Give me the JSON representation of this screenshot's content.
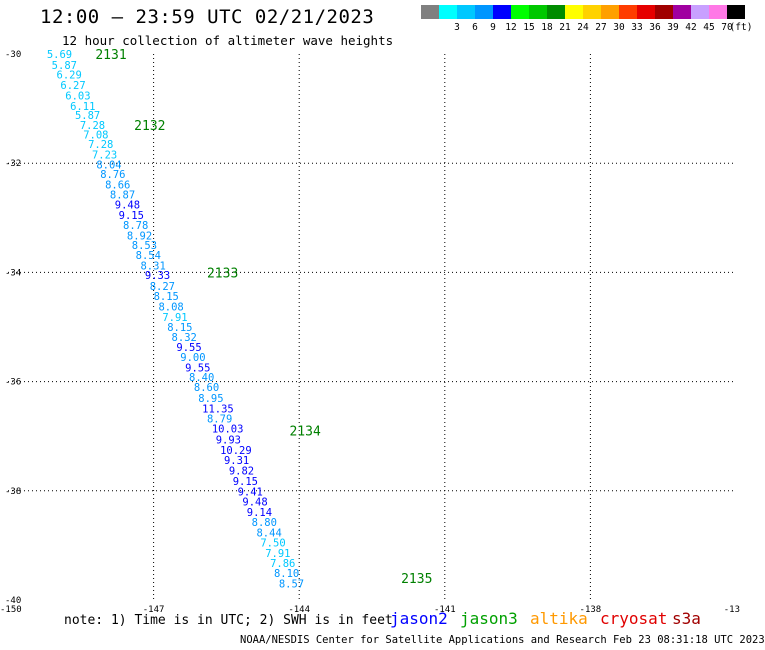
{
  "header": {
    "title": "12:00 – 23:59 UTC 02/21/2023",
    "subtitle": "12 hour collection of altimeter wave heights"
  },
  "legend": {
    "units": "(ft)",
    "bins": [
      {
        "label": "",
        "color": "#808080"
      },
      {
        "label": "3",
        "color": "#00ffff"
      },
      {
        "label": "6",
        "color": "#00c8ff"
      },
      {
        "label": "9",
        "color": "#0096ff"
      },
      {
        "label": "12",
        "color": "#0000ff"
      },
      {
        "label": "15",
        "color": "#00ff00"
      },
      {
        "label": "18",
        "color": "#00c800"
      },
      {
        "label": "21",
        "color": "#008c00"
      },
      {
        "label": "24",
        "color": "#ffff00"
      },
      {
        "label": "27",
        "color": "#ffd200"
      },
      {
        "label": "30",
        "color": "#ffa000"
      },
      {
        "label": "33",
        "color": "#ff3c00"
      },
      {
        "label": "36",
        "color": "#e60000"
      },
      {
        "label": "39",
        "color": "#a00000"
      },
      {
        "label": "42",
        "color": "#a000a0"
      },
      {
        "label": "45",
        "color": "#c8a0ff"
      },
      {
        "label": "70",
        "color": "#ff78e6"
      },
      {
        "label": "",
        "color": "#000000"
      }
    ]
  },
  "axes": {
    "lon_labels": [
      "-150",
      "-147",
      "-144",
      "-141",
      "-138",
      "-13"
    ],
    "lat_labels": [
      "-30",
      "-32",
      "-34",
      "-36",
      "-38",
      "-40"
    ]
  },
  "map_data": {
    "lat_range": [
      -40,
      -30
    ],
    "lon_range": [
      -150,
      -135
    ],
    "grid": "dotted",
    "pass_labels": [
      {
        "label": "2131",
        "lat": -30.0,
        "lon": -148.2
      },
      {
        "label": "2132",
        "lat": -31.3,
        "lon": -147.4
      },
      {
        "label": "2133",
        "lat": -34.0,
        "lon": -145.9
      },
      {
        "label": "2134",
        "lat": -36.9,
        "lon": -144.2
      },
      {
        "label": "2135",
        "lat": -39.6,
        "lon": -141.9
      }
    ],
    "points": [
      {
        "v": "5.69",
        "lat": -30.0,
        "lon": -149.2,
        "c": "#00c8ff"
      },
      {
        "v": "5.87",
        "lat": -30.2,
        "lon": -149.1,
        "c": "#00c8ff"
      },
      {
        "v": "6.29",
        "lat": -30.38,
        "lon": -149.0,
        "c": "#00c8ff"
      },
      {
        "v": "6.27",
        "lat": -30.57,
        "lon": -148.92,
        "c": "#00c8ff"
      },
      {
        "v": "6.03",
        "lat": -30.76,
        "lon": -148.82,
        "c": "#00c8ff"
      },
      {
        "v": "6.11",
        "lat": -30.95,
        "lon": -148.72,
        "c": "#00c8ff"
      },
      {
        "v": "5.87",
        "lat": -31.12,
        "lon": -148.62,
        "c": "#00c8ff"
      },
      {
        "v": "7.28",
        "lat": -31.3,
        "lon": -148.52,
        "c": "#00c8ff"
      },
      {
        "v": "7.08",
        "lat": -31.47,
        "lon": -148.45,
        "c": "#00c8ff"
      },
      {
        "v": "7.28",
        "lat": -31.65,
        "lon": -148.35,
        "c": "#00c8ff"
      },
      {
        "v": "7.23",
        "lat": -31.84,
        "lon": -148.27,
        "c": "#00c8ff"
      },
      {
        "v": "8.04",
        "lat": -32.02,
        "lon": -148.18,
        "c": "#0096ff"
      },
      {
        "v": "8.76",
        "lat": -32.2,
        "lon": -148.1,
        "c": "#0096ff"
      },
      {
        "v": "8.66",
        "lat": -32.39,
        "lon": -148.0,
        "c": "#0096ff"
      },
      {
        "v": "8.87",
        "lat": -32.57,
        "lon": -147.9,
        "c": "#0096ff"
      },
      {
        "v": "9.48",
        "lat": -32.76,
        "lon": -147.8,
        "c": "#0000ff"
      },
      {
        "v": "9.15",
        "lat": -32.95,
        "lon": -147.72,
        "c": "#0000ff"
      },
      {
        "v": "8.78",
        "lat": -33.13,
        "lon": -147.63,
        "c": "#0096ff"
      },
      {
        "v": "8.92",
        "lat": -33.32,
        "lon": -147.55,
        "c": "#0096ff"
      },
      {
        "v": "8.53",
        "lat": -33.5,
        "lon": -147.45,
        "c": "#0096ff"
      },
      {
        "v": "8.54",
        "lat": -33.68,
        "lon": -147.37,
        "c": "#0096ff"
      },
      {
        "v": "8.31",
        "lat": -33.87,
        "lon": -147.27,
        "c": "#0096ff"
      },
      {
        "v": "9.33",
        "lat": -34.05,
        "lon": -147.18,
        "c": "#0000ff"
      },
      {
        "v": "8.27",
        "lat": -34.25,
        "lon": -147.08,
        "c": "#0096ff"
      },
      {
        "v": "8.15",
        "lat": -34.43,
        "lon": -147.0,
        "c": "#0096ff"
      },
      {
        "v": "8.08",
        "lat": -34.62,
        "lon": -146.9,
        "c": "#0096ff"
      },
      {
        "v": "7.91",
        "lat": -34.82,
        "lon": -146.82,
        "c": "#00c8ff"
      },
      {
        "v": "8.15",
        "lat": -35.0,
        "lon": -146.72,
        "c": "#0096ff"
      },
      {
        "v": "8.32",
        "lat": -35.18,
        "lon": -146.63,
        "c": "#0096ff"
      },
      {
        "v": "9.55",
        "lat": -35.37,
        "lon": -146.53,
        "c": "#0000ff"
      },
      {
        "v": "9.00",
        "lat": -35.55,
        "lon": -146.45,
        "c": "#0096ff"
      },
      {
        "v": "9.55",
        "lat": -35.74,
        "lon": -146.35,
        "c": "#0000ff"
      },
      {
        "v": "8.40",
        "lat": -35.92,
        "lon": -146.27,
        "c": "#0096ff"
      },
      {
        "v": "8.60",
        "lat": -36.1,
        "lon": -146.17,
        "c": "#0096ff"
      },
      {
        "v": "8.95",
        "lat": -36.3,
        "lon": -146.08,
        "c": "#0096ff"
      },
      {
        "v": "11.35",
        "lat": -36.49,
        "lon": -146.0,
        "c": "#0000ff"
      },
      {
        "v": "8.79",
        "lat": -36.68,
        "lon": -145.9,
        "c": "#0096ff"
      },
      {
        "v": "10.03",
        "lat": -36.86,
        "lon": -145.8,
        "c": "#0000ff"
      },
      {
        "v": "9.93",
        "lat": -37.06,
        "lon": -145.72,
        "c": "#0000ff"
      },
      {
        "v": "10.29",
        "lat": -37.25,
        "lon": -145.63,
        "c": "#0000ff"
      },
      {
        "v": "9.31",
        "lat": -37.44,
        "lon": -145.55,
        "c": "#0000ff"
      },
      {
        "v": "9.82",
        "lat": -37.63,
        "lon": -145.45,
        "c": "#0000ff"
      },
      {
        "v": "9.15",
        "lat": -37.82,
        "lon": -145.37,
        "c": "#0000ff"
      },
      {
        "v": "9.41",
        "lat": -38.01,
        "lon": -145.27,
        "c": "#0000ff"
      },
      {
        "v": "9.48",
        "lat": -38.2,
        "lon": -145.17,
        "c": "#0000ff"
      },
      {
        "v": "9.14",
        "lat": -38.39,
        "lon": -145.08,
        "c": "#0000ff"
      },
      {
        "v": "8.80",
        "lat": -38.57,
        "lon": -144.98,
        "c": "#0096ff"
      },
      {
        "v": "8.44",
        "lat": -38.76,
        "lon": -144.88,
        "c": "#0096ff"
      },
      {
        "v": "7.50",
        "lat": -38.95,
        "lon": -144.8,
        "c": "#00c8ff"
      },
      {
        "v": "7.91",
        "lat": -39.14,
        "lon": -144.7,
        "c": "#00c8ff"
      },
      {
        "v": "7.86",
        "lat": -39.32,
        "lon": -144.6,
        "c": "#00c8ff"
      },
      {
        "v": "8.10",
        "lat": -39.51,
        "lon": -144.52,
        "c": "#0096ff"
      },
      {
        "v": "8.57",
        "lat": -39.7,
        "lon": -144.42,
        "c": "#0096ff"
      }
    ]
  },
  "note": "note: 1) Time is in UTC; 2) SWH is in feet",
  "satellites": [
    {
      "name": "jason2",
      "color": "#0000ff"
    },
    {
      "name": "jason3",
      "color": "#00a000"
    },
    {
      "name": "altika",
      "color": "#ff9900"
    },
    {
      "name": "cryosat",
      "color": "#e00000"
    },
    {
      "name": "s3a",
      "color": "#a00000"
    }
  ],
  "footer": "NOAA/NESDIS Center for Satellite Applications and Research   Feb 23 08:31:18 UTC 2023"
}
